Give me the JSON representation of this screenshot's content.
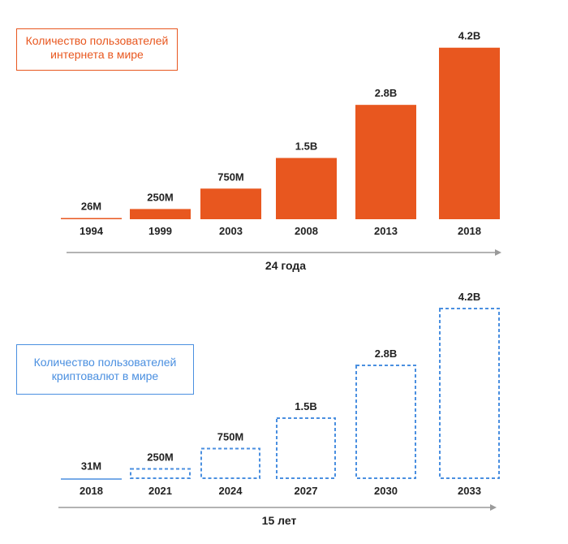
{
  "colors": {
    "internet": "#e8571f",
    "crypto": "#4a8fe0",
    "axis": "#9a9a9a",
    "text": "#222222"
  },
  "chart_data": [
    {
      "type": "bar",
      "style": "solid",
      "title_lines": [
        "Количество пользователей",
        "интернета в мире"
      ],
      "categories": [
        "1994",
        "1999",
        "2003",
        "2008",
        "2013",
        "2018"
      ],
      "values": [
        0.026,
        0.25,
        0.75,
        1.5,
        2.8,
        4.2
      ],
      "value_labels": [
        "26M",
        "250M",
        "750M",
        "1.5B",
        "2.8B",
        "4.2B"
      ],
      "value_unit": "billions",
      "span_label": "24 года",
      "legend": "top-left"
    },
    {
      "type": "bar",
      "style": "dashed",
      "title_lines": [
        "Количество пользователей",
        "криптовалют в мире"
      ],
      "categories": [
        "2018",
        "2021",
        "2024",
        "2027",
        "2030",
        "2033"
      ],
      "values": [
        0.031,
        0.25,
        0.75,
        1.5,
        2.8,
        4.2
      ],
      "value_labels": [
        "31M",
        "250M",
        "750M",
        "1.5B",
        "2.8B",
        "4.2B"
      ],
      "value_unit": "billions",
      "span_label": "15 лет",
      "legend": "left"
    }
  ]
}
